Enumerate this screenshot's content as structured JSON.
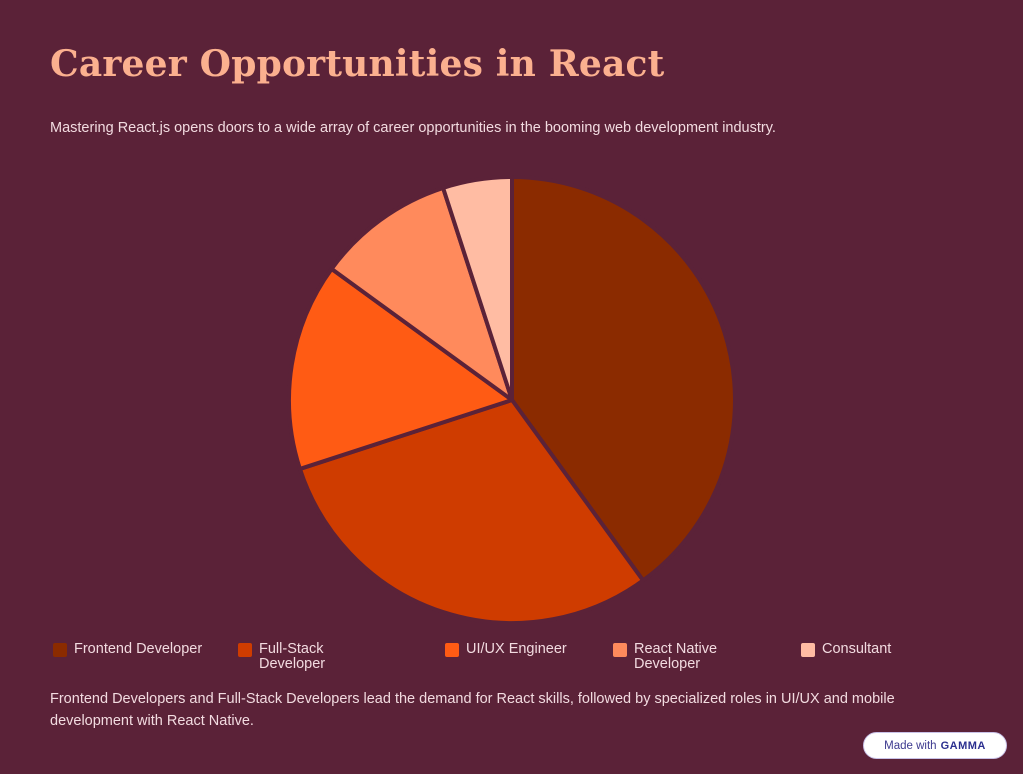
{
  "title": "Career Opportunities in React",
  "subtitle": "Mastering React.js opens doors to a wide array of career opportunities in the booming web development industry.",
  "caption": "Frontend Developers and Full-Stack Developers lead the demand for React skills, followed by specialized roles in UI/UX and mobile development with React Native.",
  "badge": {
    "prefix": "Made with",
    "brand": "GAMMA"
  },
  "colors": {
    "background": "#5b2238",
    "title": "#fbb08f",
    "text": "#f2dbe0",
    "slice_separator": "#5b2238"
  },
  "chart_data": {
    "type": "pie",
    "slices": [
      {
        "label": "Frontend Developer",
        "value": 40,
        "color": "#8b2b00"
      },
      {
        "label": "Full-Stack Developer",
        "value": 30,
        "color": "#cf3c00"
      },
      {
        "label": "UI/UX Engineer",
        "value": 15,
        "color": "#ff5b14"
      },
      {
        "label": "React Native Developer",
        "value": 10,
        "color": "#ff8a5c"
      },
      {
        "label": "Consultant",
        "value": 5,
        "color": "#ffbca3"
      }
    ],
    "legend_position": "bottom"
  }
}
